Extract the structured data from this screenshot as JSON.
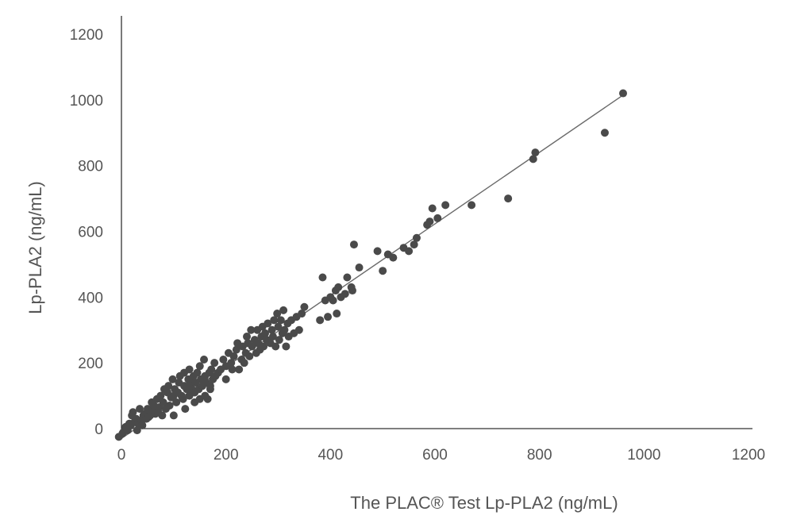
{
  "chart_data": {
    "type": "scatter",
    "title": "",
    "xlabel": "The PLAC® Test Lp-PLA2 (ng/mL)",
    "ylabel": "Lp-PLA2 (ng/mL)",
    "xlim": [
      0,
      1200
    ],
    "ylim": [
      0,
      1200
    ],
    "xticks": [
      "0",
      "200",
      "400",
      "600",
      "800",
      "1000",
      "1200"
    ],
    "yticks": [
      "0",
      "200",
      "400",
      "600",
      "800",
      "1000",
      "1200"
    ],
    "grid": false,
    "legend": "none",
    "trendline": {
      "x": [
        0,
        965
      ],
      "y": [
        -30,
        1020
      ]
    },
    "series": [
      {
        "color": "#4a4a4a",
        "x": [
          -5,
          2,
          4,
          8,
          10,
          12,
          15,
          18,
          20,
          22,
          25,
          28,
          30,
          32,
          35,
          38,
          40,
          42,
          45,
          48,
          50,
          52,
          55,
          58,
          60,
          62,
          65,
          68,
          70,
          72,
          75,
          78,
          80,
          82,
          85,
          88,
          90,
          92,
          95,
          98,
          100,
          100,
          102,
          105,
          108,
          110,
          112,
          115,
          118,
          120,
          120,
          122,
          125,
          128,
          130,
          130,
          132,
          135,
          138,
          140,
          140,
          142,
          145,
          148,
          150,
          150,
          152,
          155,
          158,
          160,
          160,
          162,
          165,
          168,
          170,
          170,
          172,
          175,
          178,
          180,
          185,
          190,
          195,
          200,
          200,
          205,
          210,
          212,
          215,
          220,
          222,
          225,
          230,
          232,
          235,
          238,
          240,
          242,
          245,
          248,
          250,
          255,
          258,
          260,
          262,
          265,
          268,
          270,
          272,
          275,
          278,
          280,
          285,
          288,
          290,
          292,
          295,
          298,
          300,
          302,
          305,
          308,
          310,
          312,
          315,
          318,
          320,
          325,
          330,
          335,
          340,
          345,
          350,
          380,
          385,
          390,
          395,
          400,
          405,
          410,
          412,
          415,
          420,
          428,
          432,
          440,
          442,
          445,
          455,
          490,
          500,
          510,
          520,
          540,
          550,
          560,
          565,
          585,
          590,
          595,
          605,
          620,
          670,
          740,
          788,
          792,
          925,
          960
        ],
        "y": [
          -25,
          -15,
          -10,
          5,
          0,
          -5,
          15,
          10,
          40,
          50,
          20,
          30,
          -5,
          15,
          60,
          25,
          10,
          40,
          45,
          30,
          60,
          35,
          40,
          80,
          55,
          70,
          45,
          90,
          50,
          65,
          100,
          40,
          80,
          120,
          60,
          110,
          130,
          70,
          95,
          150,
          40,
          100,
          120,
          80,
          110,
          140,
          160,
          100,
          90,
          170,
          130,
          60,
          120,
          150,
          100,
          180,
          140,
          120,
          160,
          110,
          80,
          140,
          170,
          120,
          90,
          190,
          150,
          130,
          210,
          100,
          160,
          140,
          90,
          170,
          130,
          120,
          180,
          150,
          200,
          160,
          170,
          180,
          210,
          150,
          190,
          230,
          200,
          180,
          220,
          240,
          260,
          180,
          210,
          250,
          200,
          230,
          280,
          260,
          220,
          300,
          250,
          270,
          230,
          300,
          260,
          240,
          280,
          310,
          250,
          290,
          270,
          320,
          260,
          300,
          280,
          330,
          250,
          350,
          310,
          270,
          330,
          290,
          360,
          300,
          250,
          320,
          280,
          330,
          290,
          340,
          300,
          350,
          370,
          330,
          460,
          390,
          340,
          400,
          390,
          420,
          350,
          430,
          400,
          410,
          460,
          430,
          420,
          560,
          490,
          540,
          480,
          530,
          520,
          550,
          540,
          560,
          580,
          620,
          630,
          670,
          640,
          680,
          680,
          700,
          820,
          840,
          900,
          1020
        ]
      }
    ]
  }
}
